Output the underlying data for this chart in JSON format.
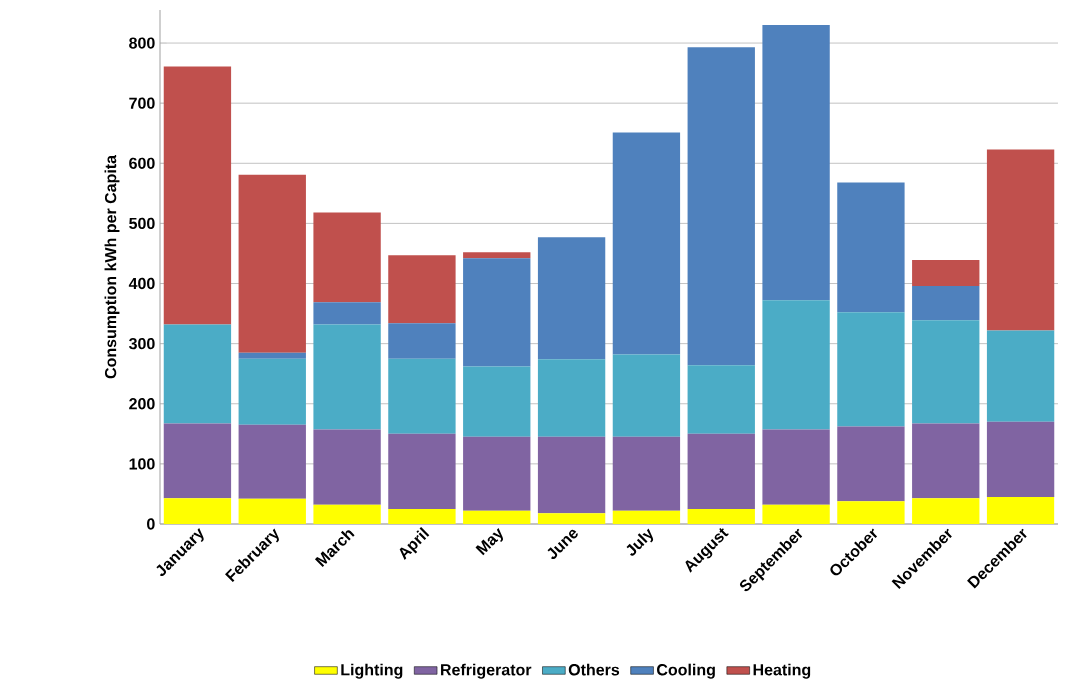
{
  "chart_data": {
    "type": "bar",
    "stacked": true,
    "ylabel": "Consumption kWh per Capita",
    "categories": [
      "January",
      "February",
      "March",
      "April",
      "May",
      "June",
      "July",
      "August",
      "September",
      "October",
      "November",
      "December"
    ],
    "series": [
      {
        "name": "Lighting",
        "color": "#ffff00",
        "values": [
          43,
          42,
          32,
          25,
          22,
          18,
          22,
          25,
          32,
          38,
          43,
          45
        ]
      },
      {
        "name": "Refrigerator",
        "color": "#8064a2",
        "values": [
          124,
          123,
          125,
          125,
          123,
          127,
          123,
          125,
          125,
          124,
          124,
          125
        ]
      },
      {
        "name": "Others",
        "color": "#4bacc6",
        "values": [
          165,
          110,
          175,
          125,
          117,
          129,
          137,
          114,
          215,
          190,
          172,
          152
        ]
      },
      {
        "name": "Cooling",
        "color": "#4f81bd",
        "values": [
          0,
          10,
          37,
          59,
          180,
          203,
          369,
          529,
          458,
          216,
          57,
          0
        ]
      },
      {
        "name": "Heating",
        "color": "#c0504d",
        "values": [
          429,
          296,
          149,
          113,
          10,
          0,
          0,
          0,
          0,
          0,
          43,
          301
        ]
      }
    ],
    "ylim": [
      0,
      855
    ],
    "yticks": [
      0,
      100,
      200,
      300,
      400,
      500,
      600,
      700,
      800
    ],
    "grid": "y",
    "legend": "bottom"
  }
}
